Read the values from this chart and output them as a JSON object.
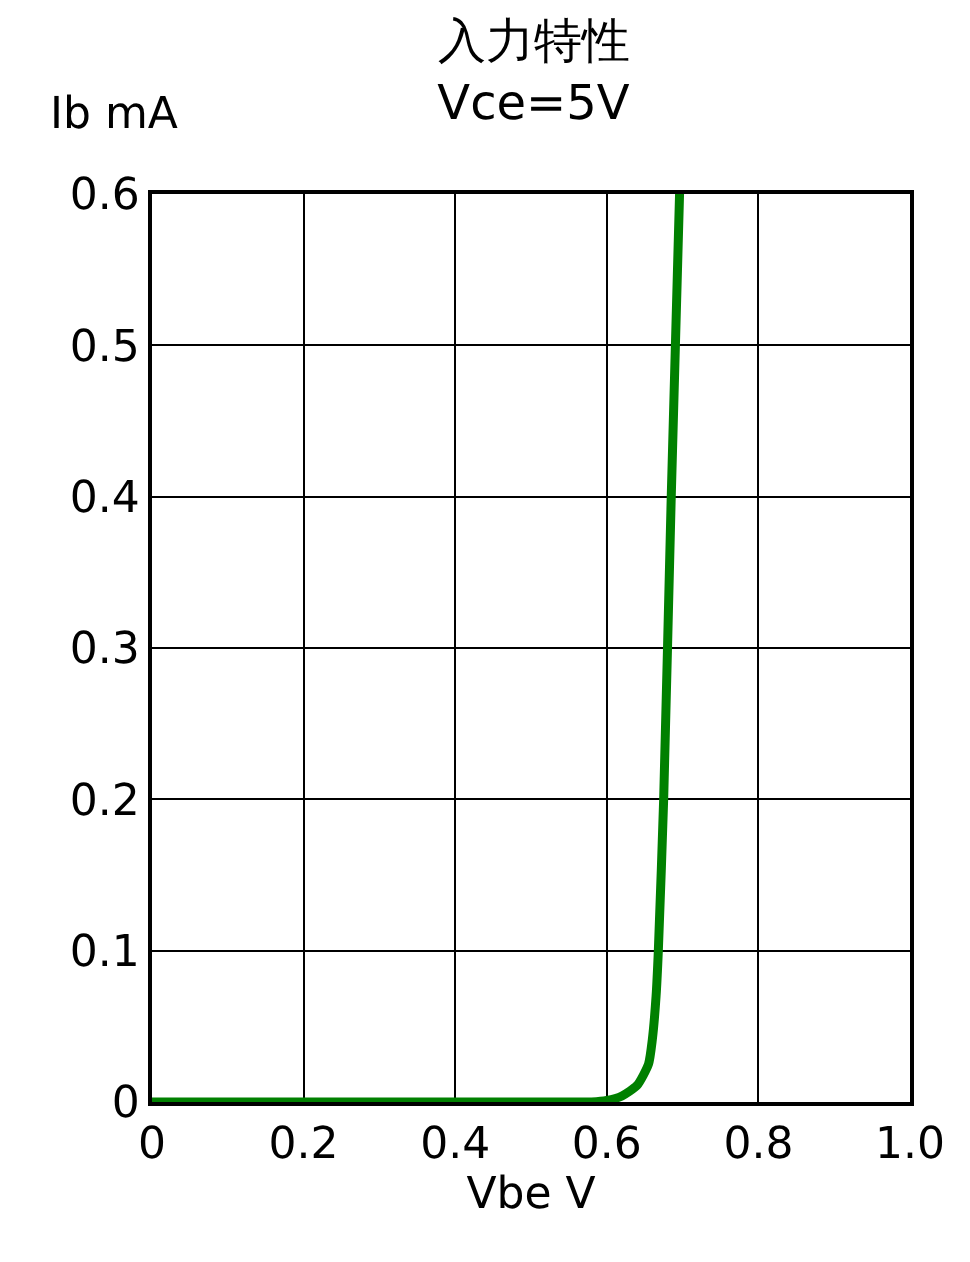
{
  "chart_data": {
    "type": "line",
    "title": "入力特性",
    "subtitle": "Vce=5V",
    "xlabel": "Vbe V",
    "ylabel": "Ib mA",
    "x": [
      0,
      0.2,
      0.4,
      0.56,
      0.58,
      0.6,
      0.62,
      0.64,
      0.655,
      0.66,
      0.665,
      0.668,
      0.675,
      0.685,
      0.696
    ],
    "series": [
      {
        "color": "#008000",
        "values": [
          0,
          0,
          0,
          0,
          0,
          0.001,
          0.004,
          0.011,
          0.025,
          0.041,
          0.07,
          0.1,
          0.2,
          0.4,
          0.6
        ]
      }
    ],
    "xlim": [
      0,
      1.0
    ],
    "ylim": [
      0,
      0.6
    ],
    "xticks": [
      0,
      0.2,
      0.4,
      0.6,
      0.8,
      {
        "value": 1,
        "label": "1.0"
      }
    ],
    "yticks": [
      0,
      0.1,
      0.2,
      0.3,
      0.4,
      0.5,
      0.6
    ],
    "grid": true,
    "marker": "none",
    "line_style": "solid"
  }
}
